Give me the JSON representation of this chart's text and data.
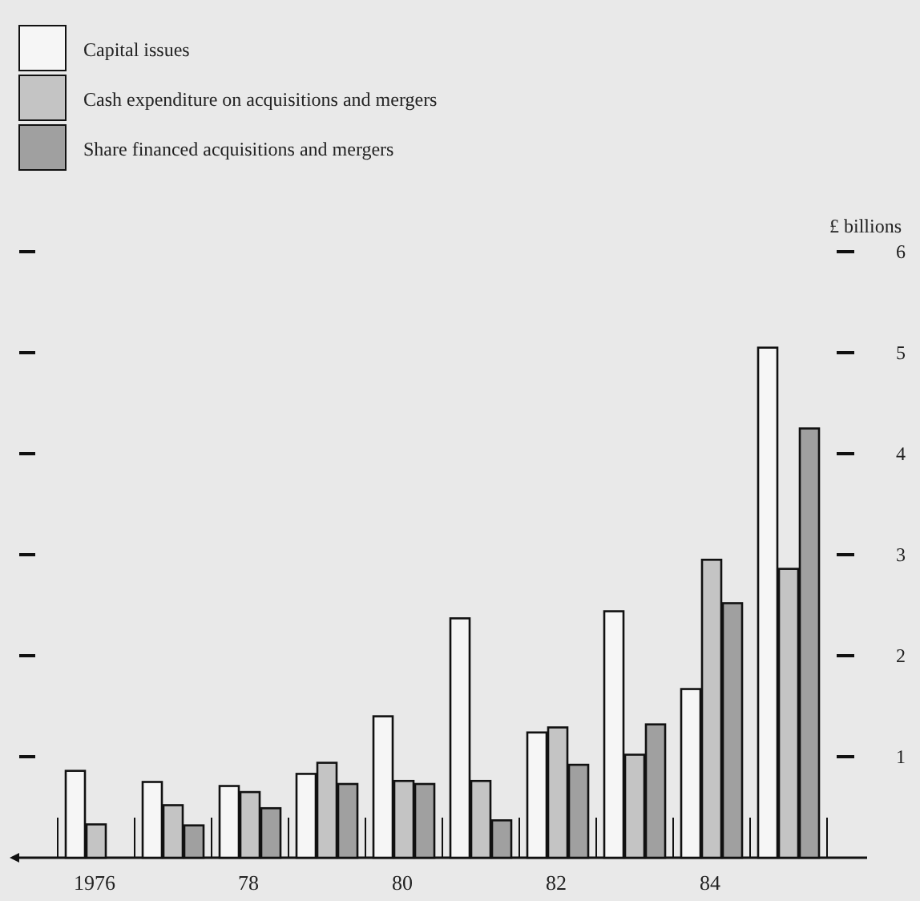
{
  "chart_data": {
    "type": "bar",
    "ylabel": "£ billions",
    "categories": [
      "1976",
      null,
      "78",
      null,
      "80",
      null,
      "82",
      null,
      "84",
      null
    ],
    "series": [
      {
        "name": "Capital issues",
        "color": "#f6f6f6",
        "values": [
          0.86,
          0.75,
          0.71,
          0.83,
          1.4,
          2.37,
          1.24,
          2.44,
          1.67,
          5.05
        ]
      },
      {
        "name": "Cash expenditure on acquisitions and mergers",
        "color": "#c4c4c4",
        "values": [
          0.33,
          0.52,
          0.65,
          0.94,
          0.76,
          0.76,
          1.29,
          1.02,
          2.95,
          2.86
        ]
      },
      {
        "name": "Share financed acquisitions and mergers",
        "color": "#a0a0a0",
        "values": [
          null,
          0.32,
          0.49,
          0.73,
          0.73,
          0.37,
          0.92,
          1.32,
          2.52,
          4.25
        ]
      }
    ],
    "ylim": [
      0,
      6
    ],
    "yticks": [
      1,
      2,
      3,
      4,
      5,
      6
    ],
    "legend": "top left",
    "grid": false
  }
}
